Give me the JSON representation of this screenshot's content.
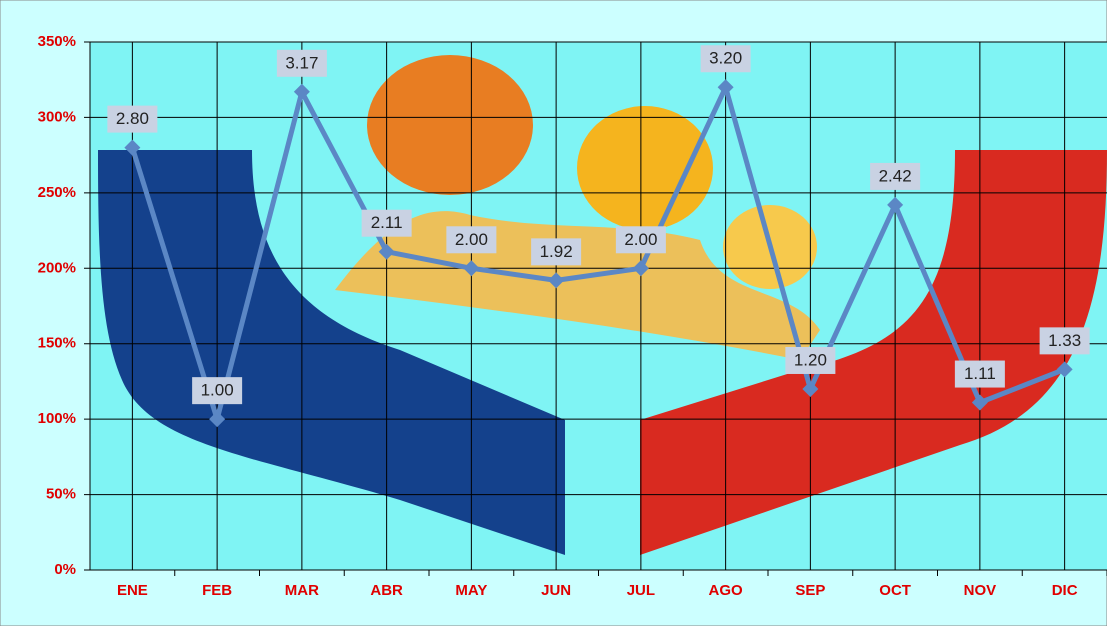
{
  "chart_data": {
    "type": "line",
    "categories": [
      "ENE",
      "FEB",
      "MAR",
      "ABR",
      "MAY",
      "JUN",
      "JUL",
      "AGO",
      "SEP",
      "OCT",
      "NOV",
      "DIC"
    ],
    "series": [
      {
        "color": "#5b87c5",
        "values": [
          280,
          100,
          317,
          211,
          200,
          192,
          200,
          320,
          120,
          242,
          111,
          133
        ],
        "value_labels": [
          "2.80",
          "1.00",
          "3.17",
          "2.11",
          "2.00",
          "1.92",
          "2.00",
          "3.20",
          "1.20",
          "2.42",
          "1.11",
          "1.33"
        ]
      }
    ],
    "ylim": [
      0,
      350
    ],
    "yticks": [
      {
        "value": 0,
        "label": "0%"
      },
      {
        "value": 50,
        "label": "50%"
      },
      {
        "value": 100,
        "label": "100%"
      },
      {
        "value": 150,
        "label": "150%"
      },
      {
        "value": 200,
        "label": "200%"
      },
      {
        "value": 250,
        "label": "250%"
      },
      {
        "value": 300,
        "label": "300%"
      },
      {
        "value": 350,
        "label": "350%"
      }
    ],
    "grid": true
  }
}
